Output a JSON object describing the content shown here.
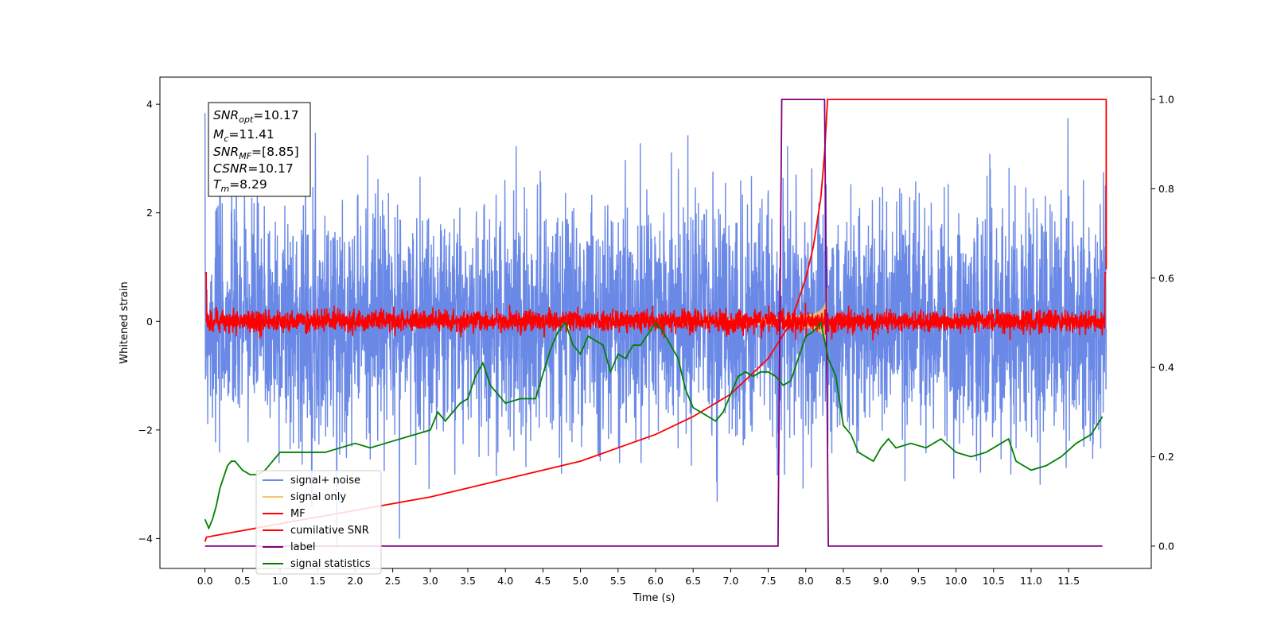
{
  "chart_data": {
    "type": "line",
    "xlabel": "Time (s)",
    "ylabel": "Whitened strain",
    "xlim": [
      -0.6,
      12.6
    ],
    "ylim": [
      -4.55,
      4.5
    ],
    "ylim_right": [
      -0.05,
      1.05
    ],
    "x_ticks": [
      "0.0",
      "0.5",
      "1.0",
      "1.5",
      "2.0",
      "2.5",
      "3.0",
      "3.5",
      "4.0",
      "4.5",
      "5.0",
      "5.5",
      "6.0",
      "6.5",
      "7.0",
      "7.5",
      "8.0",
      "8.5",
      "9.0",
      "9.5",
      "10.0",
      "10.5",
      "11.0",
      "11.5"
    ],
    "y_ticks": [
      "4",
      "2",
      "0",
      "−2",
      "−4"
    ],
    "y_ticks_right": [
      "1.0",
      "0.8",
      "0.6",
      "0.4",
      "0.2",
      "0.0"
    ],
    "legend_placement": "lower-left",
    "legend": [
      "signal+ noise",
      "signal only",
      "MF",
      "cumilative SNR",
      "label",
      "signal statistics"
    ],
    "info_box": {
      "snr_opt": "=10.17",
      "mc": "=11.41",
      "snr_mf": "=[8.85]",
      "csnr": "=10.17",
      "tm": "=8.29"
    },
    "series": [
      {
        "name": "signal+ noise",
        "color": "#6a89e6",
        "axis": "left",
        "description": "noisy strain, approx ±2 amplitude, 0–12 s"
      },
      {
        "name": "signal only",
        "color": "#f5c46a",
        "axis": "left",
        "description": "chirp growing to ±0.8 near 8.29 s"
      },
      {
        "name": "MF",
        "color": "#ff0000",
        "axis": "left",
        "description": "matched-filter output around 0"
      },
      {
        "name": "cumilative SNR",
        "color": "#ff0000",
        "axis": "right",
        "x": [
          0.0,
          0.02,
          1.0,
          2.0,
          3.0,
          4.0,
          5.0,
          6.0,
          6.5,
          7.0,
          7.5,
          7.8,
          8.0,
          8.1,
          8.2,
          8.25,
          8.29,
          12.0,
          12.0
        ],
        "y": [
          0.01,
          0.02,
          0.05,
          0.08,
          0.11,
          0.15,
          0.19,
          0.25,
          0.29,
          0.34,
          0.42,
          0.5,
          0.6,
          0.67,
          0.78,
          0.88,
          1.0,
          1.0,
          0.62
        ]
      },
      {
        "name": "label",
        "color": "#800080",
        "axis": "right",
        "x": [
          0.0,
          7.63,
          7.68,
          8.25,
          8.3,
          11.95
        ],
        "y": [
          0.0,
          0.0,
          1.0,
          1.0,
          0.0,
          0.0
        ]
      },
      {
        "name": "signal statistics",
        "color": "#008000",
        "axis": "right",
        "x": [
          0.0,
          0.05,
          0.1,
          0.15,
          0.2,
          0.3,
          0.35,
          0.4,
          0.5,
          0.6,
          0.7,
          0.8,
          0.9,
          1.0,
          1.2,
          1.4,
          1.6,
          1.8,
          2.0,
          2.2,
          2.4,
          2.6,
          2.8,
          3.0,
          3.1,
          3.2,
          3.3,
          3.4,
          3.5,
          3.6,
          3.7,
          3.8,
          4.0,
          4.2,
          4.4,
          4.6,
          4.7,
          4.8,
          4.9,
          5.0,
          5.1,
          5.2,
          5.3,
          5.4,
          5.5,
          5.6,
          5.7,
          5.8,
          6.0,
          6.1,
          6.2,
          6.3,
          6.4,
          6.5,
          6.6,
          6.7,
          6.8,
          6.9,
          7.0,
          7.1,
          7.2,
          7.3,
          7.4,
          7.5,
          7.6,
          7.7,
          7.8,
          7.9,
          8.0,
          8.1,
          8.2,
          8.3,
          8.4,
          8.5,
          8.6,
          8.7,
          8.8,
          8.9,
          9.0,
          9.1,
          9.2,
          9.4,
          9.6,
          9.8,
          10.0,
          10.2,
          10.4,
          10.6,
          10.7,
          10.8,
          11.0,
          11.2,
          11.4,
          11.6,
          11.8,
          11.95
        ],
        "y": [
          0.06,
          0.04,
          0.06,
          0.09,
          0.13,
          0.18,
          0.19,
          0.19,
          0.17,
          0.16,
          0.16,
          0.17,
          0.19,
          0.21,
          0.21,
          0.21,
          0.21,
          0.22,
          0.23,
          0.22,
          0.23,
          0.24,
          0.25,
          0.26,
          0.3,
          0.28,
          0.3,
          0.32,
          0.33,
          0.38,
          0.41,
          0.36,
          0.32,
          0.33,
          0.33,
          0.44,
          0.48,
          0.5,
          0.45,
          0.43,
          0.47,
          0.46,
          0.45,
          0.39,
          0.43,
          0.42,
          0.45,
          0.45,
          0.5,
          0.48,
          0.45,
          0.42,
          0.35,
          0.31,
          0.3,
          0.29,
          0.28,
          0.3,
          0.34,
          0.38,
          0.39,
          0.38,
          0.39,
          0.39,
          0.38,
          0.36,
          0.37,
          0.42,
          0.47,
          0.48,
          0.5,
          0.42,
          0.38,
          0.27,
          0.25,
          0.21,
          0.2,
          0.19,
          0.22,
          0.24,
          0.22,
          0.23,
          0.22,
          0.24,
          0.21,
          0.2,
          0.21,
          0.23,
          0.24,
          0.19,
          0.17,
          0.18,
          0.2,
          0.23,
          0.25,
          0.29
        ]
      }
    ]
  }
}
